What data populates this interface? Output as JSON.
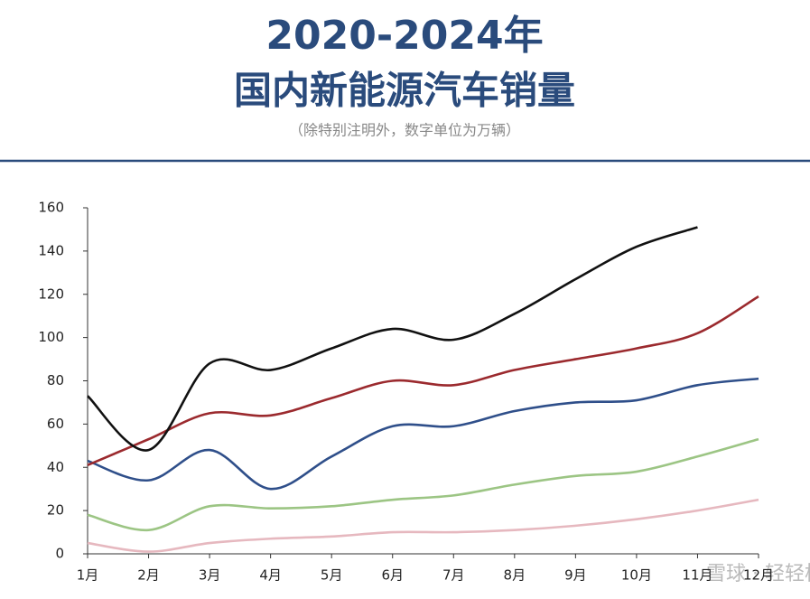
{
  "chart_data": {
    "type": "line",
    "title": "2020-2024年",
    "subtitle": "国内新能源汽车销量",
    "note": "（除特别注明外，数字单位为万辆）",
    "watermark": "雪球 · 轻轻松",
    "categories": [
      "1月",
      "2月",
      "3月",
      "4月",
      "5月",
      "6月",
      "7月",
      "8月",
      "9月",
      "10月",
      "11月",
      "12月"
    ],
    "series": [
      {
        "color": "#111111",
        "values": [
          73,
          48,
          88,
          85,
          95,
          104,
          99,
          111,
          127,
          142,
          151,
          null
        ]
      },
      {
        "color": "#9b2a2e",
        "values": [
          41,
          53,
          65,
          64,
          72,
          80,
          78,
          85,
          90,
          95,
          102,
          119
        ]
      },
      {
        "color": "#2f4f8a",
        "values": [
          43,
          34,
          48,
          30,
          45,
          59,
          59,
          66,
          70,
          71,
          78,
          81
        ]
      },
      {
        "color": "#9cc584",
        "values": [
          18,
          11,
          22,
          21,
          22,
          25,
          27,
          32,
          36,
          38,
          45,
          53
        ]
      },
      {
        "color": "#e6b8bf",
        "values": [
          5,
          1,
          5,
          7,
          8,
          10,
          10,
          11,
          13,
          16,
          20,
          25
        ]
      }
    ],
    "ylim": [
      0,
      160
    ],
    "yticks": [
      0,
      20,
      40,
      60,
      80,
      100,
      120,
      140,
      160
    ]
  }
}
